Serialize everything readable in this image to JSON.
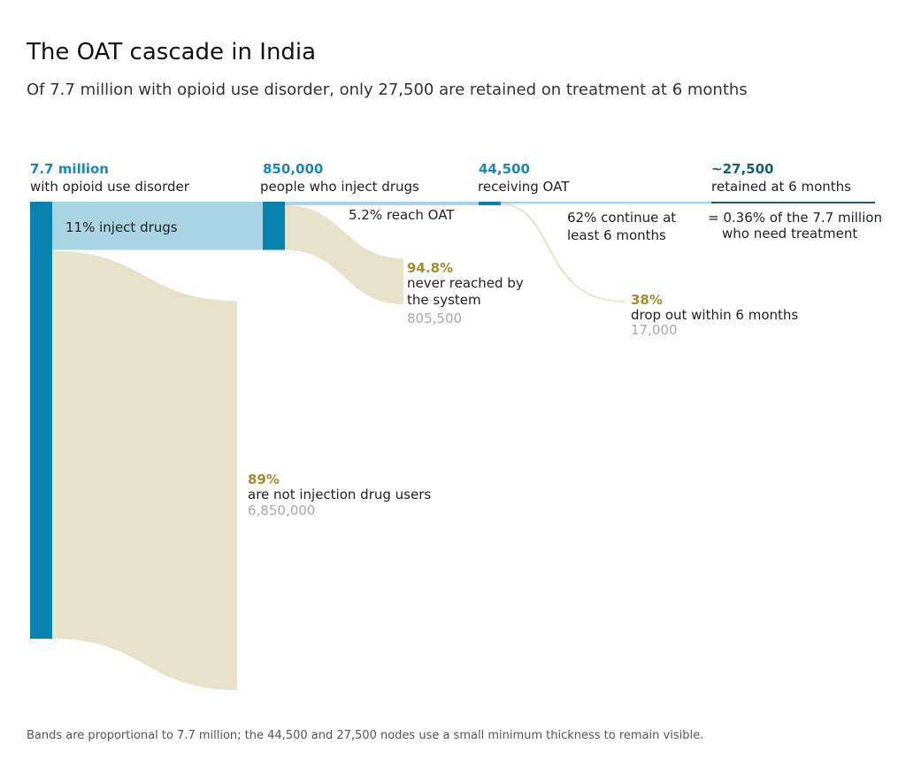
{
  "title": "The OAT cascade in India",
  "subtitle": "Of 7.7 million with opioid use disorder, only 27,500 are retained on treatment at 6 months",
  "footnote": "Bands are proportional to 7.7 million; the 44,500 and 27,500 nodes use a small minimum thickness to remain visible.",
  "colors": {
    "node_dark": "#0a82b0",
    "flow_blue": "#a9d4e3",
    "flow_beige": "#e7e2ca",
    "node_teal": "#17606e",
    "accent_gold": "#a48d2c",
    "grey": "#a8a8a8"
  },
  "chart_data": {
    "type": "sankey",
    "nodes": [
      {
        "id": "oud",
        "value": 7700000,
        "value_label": "7.7 million",
        "label": "with opioid use disorder"
      },
      {
        "id": "pwid",
        "value": 850000,
        "value_label": "850,000",
        "label": "people who inject drugs"
      },
      {
        "id": "oat",
        "value": 44500,
        "value_label": "44,500",
        "label": "receiving OAT"
      },
      {
        "id": "retained",
        "value": 27500,
        "value_label": "~27,500",
        "label": "retained at 6 months",
        "note_line1": "= 0.36% of the 7.7 million",
        "note_line2": "who need treatment"
      }
    ],
    "flows": [
      {
        "id": "inject",
        "from": "oud",
        "to": "pwid",
        "value": 850000,
        "label": "11% inject drugs"
      },
      {
        "id": "non-inject",
        "from": "oud",
        "to": "non-inject-end",
        "value": 6850000,
        "pct": "89%",
        "label": "are not injection drug users",
        "count": "6,850,000"
      },
      {
        "id": "reach",
        "from": "pwid",
        "to": "oat",
        "value": 44500,
        "label": "5.2% reach OAT"
      },
      {
        "id": "never",
        "from": "pwid",
        "to": "never-end",
        "value": 805500,
        "pct": "94.8%",
        "label_line1": "never reached by",
        "label_line2": "the system",
        "count": "805,500"
      },
      {
        "id": "continue",
        "from": "oat",
        "to": "retained",
        "value": 27500,
        "label_line1": "62% continue at",
        "label_line2": "least 6 months"
      },
      {
        "id": "dropout",
        "from": "oat",
        "to": "dropout-end",
        "value": 17000,
        "pct": "38%",
        "label": "drop out within 6 months",
        "count": "17,000"
      }
    ]
  }
}
